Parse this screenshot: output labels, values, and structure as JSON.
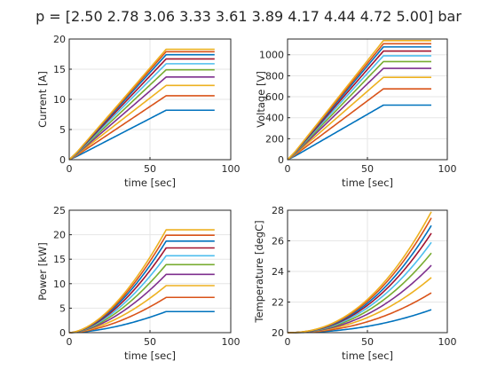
{
  "figure_title": "p = [2.50 2.78 3.06 3.33 3.61 3.89 4.17 4.44 4.72 5.00] bar",
  "series_colors": [
    "#0072BD",
    "#D95319",
    "#EDB120",
    "#7E2F8E",
    "#77AC30",
    "#4DBEEE",
    "#A2142F",
    "#0072BD",
    "#D95319",
    "#EDB120"
  ],
  "chart_data": [
    {
      "type": "line",
      "xlabel": "time [sec]",
      "ylabel": "Current [A]",
      "xlim": [
        0,
        100
      ],
      "ylim": [
        0,
        20
      ],
      "xticks": [
        "0",
        "50",
        "100"
      ],
      "yticks": [
        "0",
        "5",
        "10",
        "15",
        "20"
      ],
      "grid": true,
      "shape": "ramp",
      "t_end": 60,
      "t_stop": 90,
      "start_values": [
        0,
        0,
        0,
        0,
        0,
        0,
        0,
        0,
        0,
        0
      ],
      "final_values": [
        8.2,
        10.6,
        12.3,
        13.7,
        14.9,
        15.9,
        16.7,
        17.4,
        17.9,
        18.3
      ]
    },
    {
      "type": "line",
      "xlabel": "time [sec]",
      "ylabel": "Voltage [V]",
      "xlim": [
        0,
        100
      ],
      "ylim": [
        0,
        1150
      ],
      "xticks": [
        "0",
        "50",
        "100"
      ],
      "yticks": [
        "0",
        "200",
        "400",
        "600",
        "800",
        "1000"
      ],
      "grid": true,
      "shape": "ramp",
      "t_end": 60,
      "t_stop": 90,
      "start_values": [
        0,
        0,
        0,
        0,
        0,
        0,
        0,
        0,
        0,
        0
      ],
      "final_values": [
        520,
        675,
        785,
        870,
        935,
        990,
        1035,
        1075,
        1105,
        1135
      ]
    },
    {
      "type": "line",
      "xlabel": "time [sec]",
      "ylabel": "Power [kW]",
      "xlim": [
        0,
        100
      ],
      "ylim": [
        0,
        25
      ],
      "xticks": [
        "0",
        "50",
        "100"
      ],
      "yticks": [
        "0",
        "5",
        "10",
        "15",
        "20",
        "25"
      ],
      "grid": true,
      "shape": "quadratic",
      "t_end": 60,
      "t_stop": 90,
      "start_values": [
        0,
        0,
        0,
        0,
        0,
        0,
        0,
        0,
        0,
        0
      ],
      "final_values": [
        4.3,
        7.2,
        9.6,
        11.9,
        13.9,
        15.7,
        17.3,
        18.7,
        19.9,
        21.0
      ]
    },
    {
      "type": "line",
      "xlabel": "time [sec]",
      "ylabel": "Temperature [degC]",
      "xlim": [
        0,
        100
      ],
      "ylim": [
        20,
        28
      ],
      "xticks": [
        "0",
        "50",
        "100"
      ],
      "yticks": [
        "20",
        "22",
        "24",
        "26",
        "28"
      ],
      "grid": true,
      "shape": "heating",
      "t_end": 60,
      "t_stop": 90,
      "start_values": [
        20,
        20,
        20,
        20,
        20,
        20,
        20,
        20,
        20,
        20
      ],
      "final_values": [
        21.5,
        22.6,
        23.6,
        24.4,
        25.2,
        25.9,
        26.5,
        27.0,
        27.5,
        27.9
      ]
    }
  ]
}
